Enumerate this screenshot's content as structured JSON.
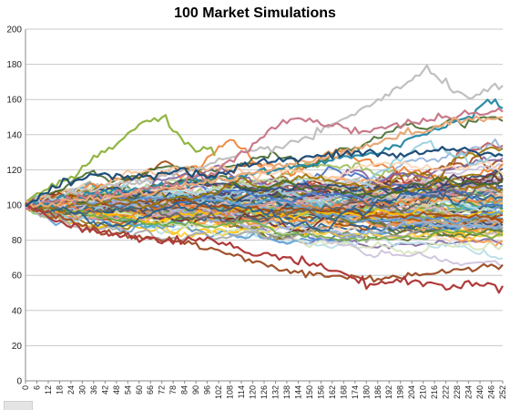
{
  "chart_data": {
    "type": "line",
    "title": "100 Market Simulations",
    "xlabel": "",
    "ylabel": "",
    "ylim": [
      0,
      200
    ],
    "xlim": [
      0,
      252
    ],
    "y_ticks": [
      0,
      20,
      40,
      60,
      80,
      100,
      120,
      140,
      160,
      180,
      200
    ],
    "x_ticks": [
      0,
      6,
      12,
      18,
      24,
      30,
      36,
      42,
      48,
      54,
      60,
      66,
      72,
      78,
      84,
      90,
      96,
      102,
      108,
      114,
      120,
      126,
      132,
      138,
      144,
      150,
      156,
      162,
      168,
      174,
      180,
      186,
      192,
      198,
      204,
      210,
      216,
      222,
      228,
      234,
      240,
      246,
      252
    ],
    "grid": "horizontal",
    "legend": "none",
    "series_count": 100,
    "start_value": 100,
    "highlighted_series": [
      {
        "color": "#c0c0c0",
        "x": [
          0,
          30,
          60,
          90,
          120,
          150,
          170,
          190,
          200,
          212,
          220,
          232,
          244,
          252
        ],
        "values": [
          100,
          108,
          114,
          120,
          130,
          138,
          150,
          162,
          168,
          177,
          170,
          162,
          165,
          168
        ]
      },
      {
        "color": "#92b542",
        "x": [
          0,
          12,
          24,
          36,
          48,
          60,
          66,
          72,
          78,
          84,
          90,
          96,
          100
        ],
        "values": [
          100,
          110,
          114,
          126,
          135,
          145,
          148,
          151,
          142,
          135,
          131,
          133,
          128
        ]
      },
      {
        "color": "#2b8ca8",
        "x": [
          0,
          40,
          80,
          120,
          160,
          190,
          210,
          224,
          236,
          244,
          252
        ],
        "values": [
          100,
          106,
          112,
          118,
          124,
          132,
          140,
          146,
          152,
          160,
          155
        ]
      },
      {
        "color": "#c87a8a",
        "x": [
          0,
          30,
          60,
          100,
          120,
          140,
          160,
          180,
          200,
          220,
          240,
          252
        ],
        "values": [
          100,
          104,
          108,
          118,
          134,
          150,
          146,
          142,
          146,
          150,
          152,
          153
        ]
      },
      {
        "color": "#a0522d",
        "x": [
          0,
          20,
          40,
          60,
          80,
          100,
          120,
          140,
          160,
          180,
          200,
          220,
          240,
          252
        ],
        "values": [
          100,
          92,
          86,
          82,
          80,
          74,
          68,
          62,
          60,
          58,
          60,
          62,
          64,
          66
        ]
      },
      {
        "color": "#b03a3a",
        "x": [
          0,
          20,
          40,
          60,
          80,
          100,
          120,
          140,
          160,
          170,
          180,
          200,
          220,
          240,
          252
        ],
        "values": [
          100,
          90,
          84,
          82,
          80,
          80,
          72,
          70,
          64,
          60,
          55,
          57,
          54,
          55,
          54
        ]
      },
      {
        "color": "#e8a878",
        "x": [
          0,
          40,
          80,
          120,
          160,
          200,
          230,
          252
        ],
        "values": [
          100,
          104,
          110,
          118,
          128,
          140,
          148,
          150
        ]
      },
      {
        "color": "#1f4e79",
        "x": [
          0,
          20,
          40,
          60,
          80,
          100,
          120,
          140,
          160,
          180,
          200,
          220,
          240,
          252
        ],
        "values": [
          100,
          112,
          118,
          116,
          120,
          116,
          124,
          126,
          128,
          130,
          128,
          132,
          130,
          128
        ]
      }
    ],
    "palette": [
      "#4472c4",
      "#ed7d31",
      "#a5a5a5",
      "#ffc000",
      "#5b9bd5",
      "#70ad47",
      "#264478",
      "#9e480e",
      "#636363",
      "#997300",
      "#255e91",
      "#43682b",
      "#698ed0",
      "#f1975a",
      "#b7b7b7",
      "#ffcd33",
      "#7cafdd",
      "#8cc168",
      "#c0504d",
      "#9bbb59",
      "#8064a2",
      "#4bacc6",
      "#f79646",
      "#2c4d75",
      "#772c2a",
      "#5f7530",
      "#4d3b62",
      "#276a7c",
      "#b65708",
      "#e6b9b8",
      "#d7e4bd",
      "#ccc1da",
      "#b7dee8",
      "#fcd5b5",
      "#95b3d7",
      "#d99694",
      "#c3d69b",
      "#b3a2c7",
      "#93cddd",
      "#fac090"
    ]
  }
}
